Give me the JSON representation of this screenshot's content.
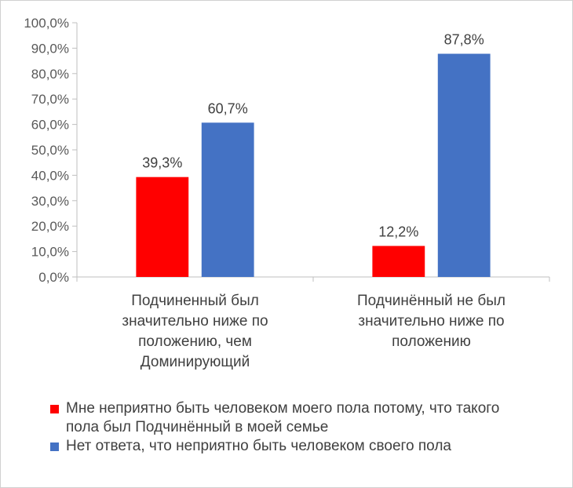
{
  "chart_data": {
    "type": "bar",
    "categories": [
      "Подчиненный был значительно ниже по положению, чем Доминирующий",
      "Подчинённый не был значительно ниже по положению"
    ],
    "category_lines": [
      [
        "Подчиненный был",
        "значительно ниже по",
        "положению, чем",
        "Доминирующий"
      ],
      [
        "Подчинённый не был",
        "значительно ниже по",
        "положению"
      ]
    ],
    "series": [
      {
        "name": "Мне неприятно быть человеком моего пола потому, что такого пола был Подчинённый в моей семье",
        "values": [
          39.3,
          12.2
        ],
        "labels": [
          "39,3%",
          "12,2%"
        ],
        "color": "#ff0000"
      },
      {
        "name": "Нет ответа, что неприятно быть человеком своего пола",
        "values": [
          60.7,
          87.8
        ],
        "labels": [
          "60,7%",
          "87,8%"
        ],
        "color": "#4472c4"
      }
    ],
    "ylim": [
      0,
      100
    ],
    "yticks": [
      "0,0%",
      "10,0%",
      "20,0%",
      "30,0%",
      "40,0%",
      "50,0%",
      "60,0%",
      "70,0%",
      "80,0%",
      "90,0%",
      "100,0%"
    ],
    "grid": false,
    "legend_position": "bottom"
  },
  "legend": {
    "line1": "Мне неприятно быть человеком моего пола потому, что такого",
    "line2": "пола был Подчинённый в моей семье",
    "item2": "Нет ответа, что неприятно быть человеком своего пола"
  }
}
